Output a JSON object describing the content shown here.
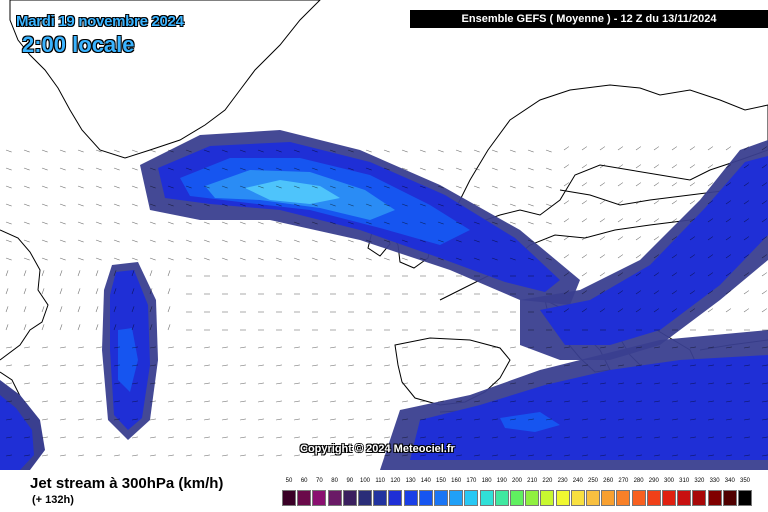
{
  "header": {
    "date": "Mardi 19 novembre 2024",
    "local_time": "2:00 locale",
    "run_info": "Ensemble GEFS  ( Moyenne )  -  12 Z du 13/11/2024"
  },
  "map": {
    "parameter": "Jet stream à 300hPa (km/h)",
    "forecast_offset": "(+ 132h)",
    "copyright": "Copyright © 2024 Meteociel.fr",
    "colors": {
      "background": "#ffffff",
      "coastline": "#000000",
      "jet_outer": "#3a3f8f",
      "jet_band": "#1f2fd6",
      "jet_mid": "#1655f0",
      "jet_core": "#2a8cf5",
      "jet_max": "#4ec4fb"
    }
  },
  "scale": {
    "ticks": [
      "50",
      "60",
      "70",
      "80",
      "90",
      "100",
      "110",
      "120",
      "130",
      "140",
      "150",
      "160",
      "170",
      "180",
      "190",
      "200",
      "210",
      "220",
      "230",
      "240",
      "250",
      "260",
      "270",
      "280",
      "290",
      "300",
      "310",
      "320",
      "330",
      "340",
      "350"
    ],
    "colors": [
      "#3a0026",
      "#6a0a4a",
      "#8a1070",
      "#6a1a66",
      "#3a1f5e",
      "#2a2d78",
      "#2233a0",
      "#1f2fd6",
      "#1a3fe6",
      "#1655f0",
      "#1a75f5",
      "#20a0f7",
      "#28c8f4",
      "#30e0d8",
      "#40e8a0",
      "#60f060",
      "#90f040",
      "#c8f830",
      "#f0f830",
      "#f8e040",
      "#f8c040",
      "#f8a030",
      "#f88028",
      "#f86020",
      "#f04018",
      "#e02010",
      "#c81010",
      "#a80808",
      "#800000",
      "#500000",
      "#000000"
    ]
  }
}
